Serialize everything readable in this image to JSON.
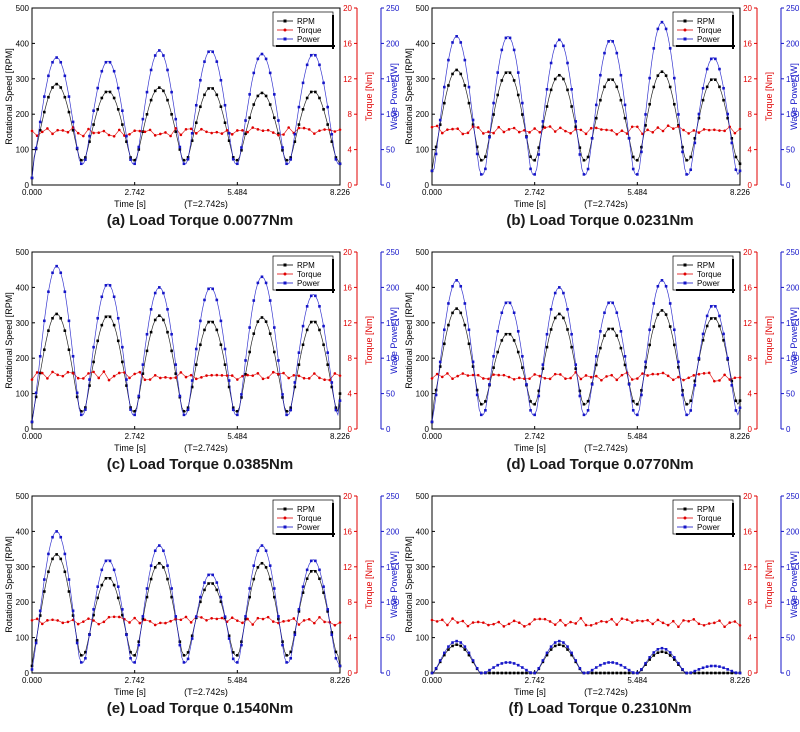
{
  "chart_data": [
    {
      "type": "line",
      "caption": "(a) Load Torque 0.0077Nm",
      "xlabel": "Time [s]",
      "xnote": "(T=2.742s)",
      "ylabel_left": "Rotational Speed [RPM]",
      "ylabel_mid": "Torque [Nm]",
      "ylabel_right": "Wave Power [W]",
      "xlim": [
        0,
        8.226
      ],
      "ylim_rpm": [
        0,
        500
      ],
      "ylim_torque": [
        0,
        20
      ],
      "ylim_power": [
        0,
        250
      ],
      "xticks": [
        "0.000",
        "2.742",
        "5.484",
        "8.226"
      ],
      "yticks_rpm": [
        "0",
        "100",
        "200",
        "300",
        "400",
        "500"
      ],
      "yticks_torque": [
        "0",
        "4",
        "8",
        "12",
        "16",
        "20"
      ],
      "yticks_power": [
        "0",
        "50",
        "100",
        "150",
        "200",
        "250"
      ],
      "legend": [
        "RPM",
        "Torque",
        "Power"
      ],
      "legend_position": "top-right",
      "series": [
        {
          "name": "RPM",
          "axis": "rpm",
          "color": "#000000",
          "peaks": [
            285,
            265,
            275,
            275,
            260,
            265
          ],
          "trough": 70,
          "start": 20,
          "end": 60
        },
        {
          "name": "Torque",
          "axis": "torque",
          "color": "#e00000",
          "base": 6.0,
          "amp": 0.5
        },
        {
          "name": "Power",
          "axis": "power",
          "color": "#1515c8",
          "peaks": [
            180,
            175,
            190,
            190,
            185,
            185
          ],
          "trough": 30,
          "start": 10,
          "end": 30
        }
      ]
    },
    {
      "type": "line",
      "caption": "(b) Load Torque 0.0231Nm",
      "xlabel": "Time [s]",
      "xnote": "(T=2.742s)",
      "ylabel_left": "Rotational Speed [RPM]",
      "ylabel_mid": "Torque [Nm]",
      "ylabel_right": "Wave Power [W]",
      "xlim": [
        0,
        8.226
      ],
      "ylim_rpm": [
        0,
        500
      ],
      "ylim_torque": [
        0,
        20
      ],
      "ylim_power": [
        0,
        250
      ],
      "xticks": [
        "0.000",
        "2.742",
        "5.484",
        "8.226"
      ],
      "yticks_rpm": [
        "0",
        "100",
        "200",
        "300",
        "400",
        "500"
      ],
      "yticks_torque": [
        "0",
        "4",
        "8",
        "12",
        "16",
        "20"
      ],
      "yticks_power": [
        "0",
        "50",
        "100",
        "150",
        "200",
        "250"
      ],
      "legend": [
        "RPM",
        "Torque",
        "Power"
      ],
      "legend_position": "top-right",
      "series": [
        {
          "name": "RPM",
          "axis": "rpm",
          "color": "#000000",
          "peaks": [
            325,
            320,
            310,
            300,
            320,
            300
          ],
          "trough": 70,
          "start": 40,
          "end": 60
        },
        {
          "name": "Torque",
          "axis": "torque",
          "color": "#e00000",
          "base": 6.2,
          "amp": 0.5
        },
        {
          "name": "Power",
          "axis": "power",
          "color": "#1515c8",
          "peaks": [
            210,
            210,
            205,
            205,
            230,
            180
          ],
          "trough": 15,
          "start": 20,
          "end": 20
        }
      ]
    },
    {
      "type": "line",
      "caption": "(c) Load Torque 0.0385Nm",
      "xlabel": "Time [s]",
      "xnote": "(T=2.742s)",
      "ylabel_left": "Rotational Speed [RPM]",
      "ylabel_mid": "Torque [Nm]",
      "ylabel_right": "Wave Power [W]",
      "xlim": [
        0,
        8.226
      ],
      "ylim_rpm": [
        0,
        500
      ],
      "ylim_torque": [
        0,
        20
      ],
      "ylim_power": [
        0,
        250
      ],
      "xticks": [
        "0.000",
        "2.742",
        "5.484",
        "8.226"
      ],
      "yticks_rpm": [
        "0",
        "100",
        "200",
        "300",
        "400",
        "500"
      ],
      "yticks_torque": [
        "0",
        "4",
        "8",
        "12",
        "16",
        "20"
      ],
      "yticks_power": [
        "0",
        "50",
        "100",
        "150",
        "200",
        "250"
      ],
      "legend": [
        "RPM",
        "Torque",
        "Power"
      ],
      "legend_position": "top-right",
      "series": [
        {
          "name": "RPM",
          "axis": "rpm",
          "color": "#000000",
          "peaks": [
            325,
            320,
            320,
            305,
            315,
            305
          ],
          "trough": 50,
          "start": 20,
          "end": 100
        },
        {
          "name": "Torque",
          "axis": "torque",
          "color": "#e00000",
          "base": 6.0,
          "amp": 0.5
        },
        {
          "name": "Power",
          "axis": "power",
          "color": "#1515c8",
          "peaks": [
            230,
            205,
            200,
            200,
            215,
            190
          ],
          "trough": 20,
          "start": 10,
          "end": 40
        }
      ]
    },
    {
      "type": "line",
      "caption": "(d) Load Torque 0.0770Nm",
      "xlabel": "Time [s]",
      "xnote": "(T=2.742s)",
      "ylabel_left": "Rotational Speed [RPM]",
      "ylabel_mid": "Torque [Nm]",
      "ylabel_right": "Wave Power [W]",
      "xlim": [
        0,
        8.226
      ],
      "ylim_rpm": [
        0,
        500
      ],
      "ylim_torque": [
        0,
        20
      ],
      "ylim_power": [
        0,
        250
      ],
      "xticks": [
        "0.000",
        "2.742",
        "5.484",
        "8.226"
      ],
      "yticks_rpm": [
        "0",
        "100",
        "200",
        "300",
        "400",
        "500"
      ],
      "yticks_torque": [
        "0",
        "4",
        "8",
        "12",
        "16",
        "20"
      ],
      "yticks_power": [
        "0",
        "50",
        "100",
        "150",
        "200",
        "250"
      ],
      "legend": [
        "RPM",
        "Torque",
        "Power"
      ],
      "legend_position": "top-right",
      "series": [
        {
          "name": "RPM",
          "axis": "rpm",
          "color": "#000000",
          "peaks": [
            340,
            270,
            325,
            285,
            335,
            315
          ],
          "trough": 70,
          "start": 20,
          "end": 80
        },
        {
          "name": "Torque",
          "axis": "torque",
          "color": "#e00000",
          "base": 5.9,
          "amp": 0.5
        },
        {
          "name": "Power",
          "axis": "power",
          "color": "#1515c8",
          "peaks": [
            210,
            180,
            200,
            180,
            210,
            175
          ],
          "trough": 20,
          "start": 10,
          "end": 30
        }
      ]
    },
    {
      "type": "line",
      "caption": "(e) Load Torque 0.1540Nm",
      "xlabel": "Time [s]",
      "xnote": "(T=2.742s)",
      "ylabel_left": "Rotational Speed [RPM]",
      "ylabel_mid": "Torque [Nm]",
      "ylabel_right": "Wave Power [W]",
      "xlim": [
        0,
        8.226
      ],
      "ylim_rpm": [
        0,
        500
      ],
      "ylim_torque": [
        0,
        20
      ],
      "ylim_power": [
        0,
        250
      ],
      "xticks": [
        "0.000",
        "2.742",
        "5.484",
        "8.226"
      ],
      "yticks_rpm": [
        "0",
        "100",
        "200",
        "300",
        "400",
        "500"
      ],
      "yticks_torque": [
        "0",
        "4",
        "8",
        "12",
        "16",
        "20"
      ],
      "yticks_power": [
        "0",
        "50",
        "100",
        "150",
        "200",
        "250"
      ],
      "legend": [
        "RPM",
        "Torque",
        "Power"
      ],
      "legend_position": "top-right",
      "series": [
        {
          "name": "RPM",
          "axis": "rpm",
          "color": "#000000",
          "peaks": [
            335,
            270,
            310,
            255,
            310,
            290
          ],
          "trough": 50,
          "start": 20,
          "end": 20
        },
        {
          "name": "Torque",
          "axis": "torque",
          "color": "#e00000",
          "base": 5.9,
          "amp": 0.5
        },
        {
          "name": "Power",
          "axis": "power",
          "color": "#1515c8",
          "peaks": [
            200,
            160,
            180,
            140,
            180,
            160
          ],
          "trough": 15,
          "start": 5,
          "end": 10
        }
      ]
    },
    {
      "type": "line",
      "caption": "(f) Load Torque 0.2310Nm",
      "xlabel": "Time [s]",
      "xnote": "(T=2.742s)",
      "ylabel_left": "Rotational Speed [RPM]",
      "ylabel_mid": "Torque [Nm]",
      "ylabel_right": "Wave Power [W]",
      "xlim": [
        0,
        8.226
      ],
      "ylim_rpm": [
        0,
        500
      ],
      "ylim_torque": [
        0,
        20
      ],
      "ylim_power": [
        0,
        250
      ],
      "xticks": [
        "0.000",
        "2.742",
        "5.484",
        "8.226"
      ],
      "yticks_rpm": [
        "0",
        "100",
        "200",
        "300",
        "400",
        "500"
      ],
      "yticks_torque": [
        "0",
        "4",
        "8",
        "12",
        "16",
        "20"
      ],
      "yticks_power": [
        "0",
        "50",
        "100",
        "150",
        "200",
        "250"
      ],
      "legend": [
        "RPM",
        "Torque",
        "Power"
      ],
      "legend_position": "top-right",
      "series": [
        {
          "name": "RPM",
          "axis": "rpm",
          "color": "#000000",
          "peaks": [
            80,
            0,
            80,
            0,
            60,
            0
          ],
          "trough": 0,
          "start": 0,
          "end": 0
        },
        {
          "name": "Torque",
          "axis": "torque",
          "color": "#e00000",
          "base": 5.7,
          "amp": 0.5
        },
        {
          "name": "Power",
          "axis": "power",
          "color": "#1515c8",
          "peaks": [
            45,
            15,
            45,
            15,
            35,
            10
          ],
          "trough": 0,
          "start": 0,
          "end": 0
        }
      ]
    }
  ]
}
